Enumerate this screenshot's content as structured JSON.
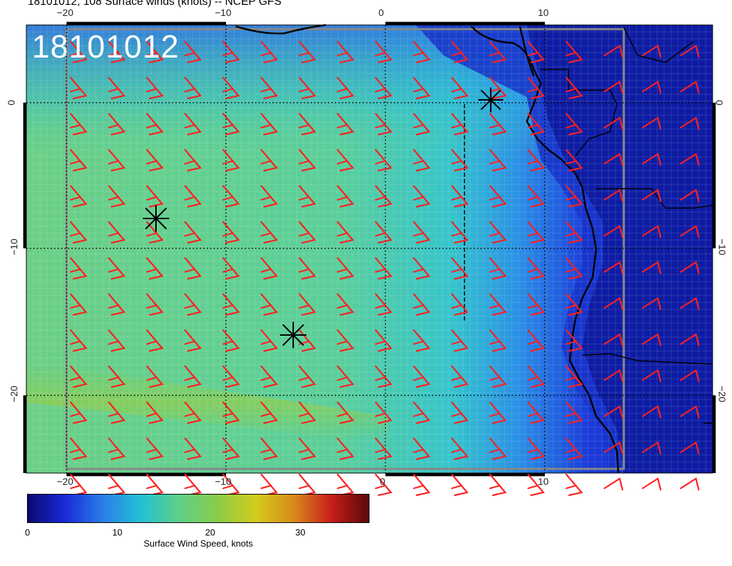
{
  "title": "18101012, 108 Surface winds (knots) -- NCEP GFS",
  "stamp": "18101012",
  "x_ticks_top": [
    "−20",
    "−10",
    "0",
    "10"
  ],
  "x_ticks_bottom": [
    "−20",
    "−10",
    "0",
    "10"
  ],
  "y_ticks_left": [
    "0",
    "−10",
    "−20"
  ],
  "y_ticks_right": [
    "0",
    "−10",
    "−20"
  ],
  "colorbar": {
    "label": "Surface Wind Speed, knots",
    "ticks": [
      "0",
      "10",
      "20",
      "30"
    ],
    "colors": [
      "#0a0a6e",
      "#1a2ad8",
      "#2a7ee8",
      "#22c0d6",
      "#5cd08a",
      "#8ccc48",
      "#d4cc1c",
      "#d88a1c",
      "#c81e1a",
      "#5a0808"
    ]
  },
  "colors": {
    "barb": "#ff2020",
    "coast": "#000000",
    "grid": "#000000"
  },
  "markers": [
    "cyclone-center-1",
    "cyclone-center-2",
    "cyclone-center-3"
  ]
}
